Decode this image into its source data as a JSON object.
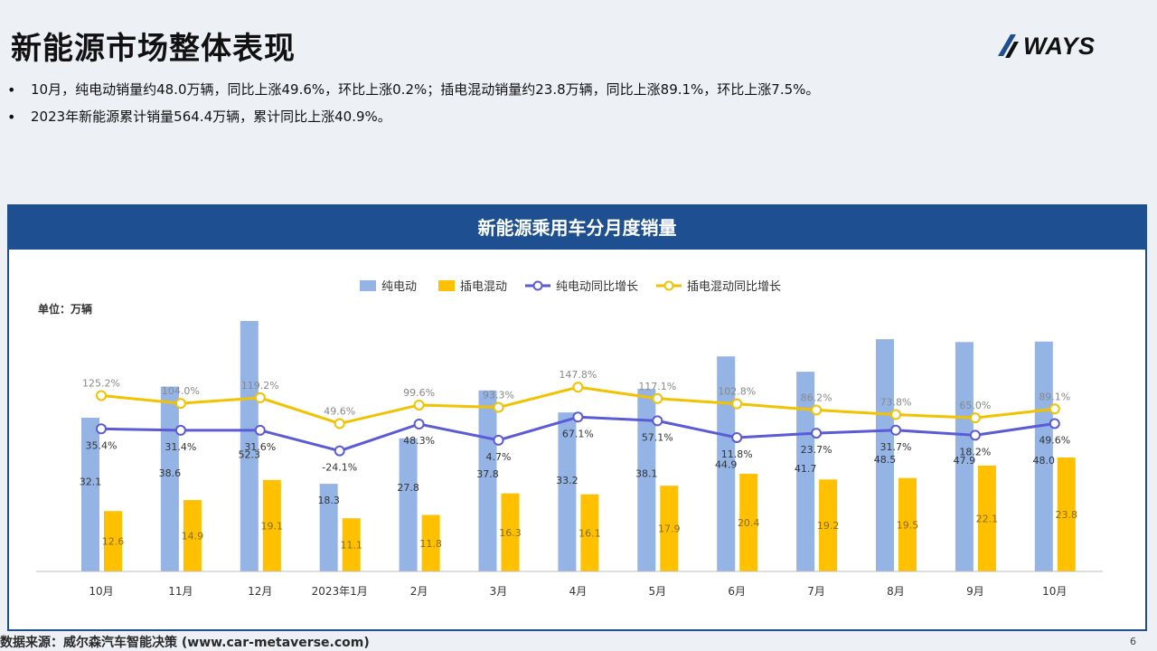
{
  "page": {
    "title": "新能源市场整体表现",
    "bullets": [
      "10月，纯电动销量约48.0万辆，同比上涨49.6%，环比上涨0.2%；插电混动销量约23.8万辆，同比上涨89.1%，环比上涨7.5%。",
      "2023年新能源累计销量564.4万辆，累计同比上涨40.9%。"
    ],
    "logo_text": "WAYS",
    "footer": "数据来源：威尔森汽车智能决策 (www.car-metaverse.com)",
    "page_number": "6"
  },
  "chart_data": {
    "type": "bar",
    "title": "新能源乘用车分月度销量",
    "unit_label": "单位：万辆",
    "categories": [
      "10月",
      "11月",
      "12月",
      "2023年1月",
      "2月",
      "3月",
      "4月",
      "5月",
      "6月",
      "7月",
      "8月",
      "9月",
      "10月"
    ],
    "ylim": [
      0,
      60
    ],
    "series": [
      {
        "name": "纯电动",
        "kind": "bar",
        "color": "#95b4e6",
        "values": [
          32.1,
          38.6,
          52.3,
          18.3,
          27.8,
          37.8,
          33.2,
          38.1,
          44.9,
          41.7,
          48.5,
          47.9,
          48.0
        ]
      },
      {
        "name": "插电混动",
        "kind": "bar",
        "color": "#ffc000",
        "values": [
          12.6,
          14.9,
          19.1,
          11.1,
          11.8,
          16.3,
          16.1,
          17.9,
          20.4,
          19.2,
          19.5,
          22.1,
          23.8
        ]
      },
      {
        "name": "纯电动同比增长",
        "kind": "line",
        "color": "#5b5bd6",
        "values": [
          35.4,
          31.4,
          31.6,
          -24.1,
          48.3,
          4.7,
          67.1,
          57.1,
          11.8,
          23.7,
          31.7,
          18.2,
          49.6
        ],
        "labels": [
          "35.4%",
          "31.4%",
          "31.6%",
          "-24.1%",
          "48.3%",
          "4.7%",
          "67.1%",
          "57.1%",
          "11.8%",
          "23.7%",
          "31.7%",
          "18.2%",
          "49.6%"
        ]
      },
      {
        "name": "插电混动同比增长",
        "kind": "line",
        "color": "#f2c200",
        "values": [
          125.2,
          104.0,
          119.2,
          49.6,
          99.6,
          93.3,
          147.8,
          117.1,
          102.8,
          86.2,
          73.8,
          65.0,
          89.1
        ],
        "labels": [
          "125.2%",
          "104.0%",
          "119.2%",
          "49.6%",
          "99.6%",
          "93.3%",
          "147.8%",
          "117.1%",
          "102.8%",
          "86.2%",
          "73.8%",
          "65.0%",
          "89.1%"
        ]
      }
    ],
    "legend_position": "top",
    "grid": false
  }
}
